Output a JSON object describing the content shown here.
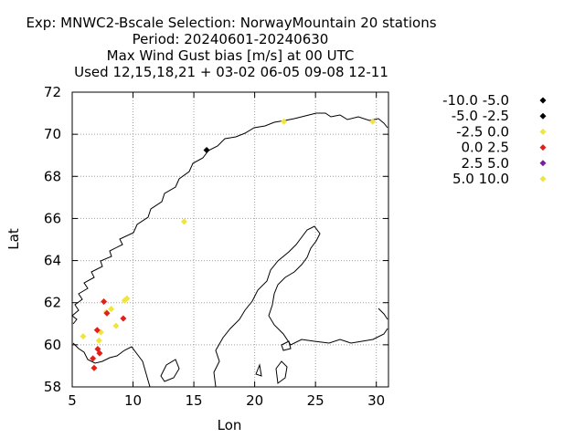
{
  "chart_data": {
    "type": "scatter",
    "title_lines": [
      "Exp: MNWC2-Bscale   Selection: NorwayMountain     20 stations",
      "Period: 20240601-20240630",
      "Max Wind Gust bias [m/s] at  00 UTC",
      "Used 12,15,18,21 + 03-02 06-05 09-08 12-11"
    ],
    "xlabel": "Lon",
    "ylabel": "Lat",
    "xlim": [
      5,
      31
    ],
    "ylim": [
      58,
      72
    ],
    "xticks": [
      "5",
      "10",
      "15",
      "20",
      "25",
      "30"
    ],
    "yticks": [
      "58",
      "60",
      "62",
      "64",
      "66",
      "68",
      "70",
      "72"
    ],
    "grid": true,
    "legend_position": "right",
    "series": [
      {
        "name": "-10.0 -5.0",
        "color": "#000000",
        "points": []
      },
      {
        "name": "-5.0 -2.5",
        "color": "#000000",
        "points": [
          [
            16.05,
            69.25
          ]
        ]
      },
      {
        "name": "-2.5 0.0",
        "color": "#f0e442",
        "points": [
          [
            22.4,
            70.6
          ],
          [
            29.7,
            70.6
          ],
          [
            14.2,
            65.85
          ],
          [
            9.5,
            62.2
          ],
          [
            9.3,
            62.1
          ],
          [
            8.2,
            61.7
          ],
          [
            7.8,
            61.55
          ],
          [
            8.6,
            60.9
          ],
          [
            7.35,
            60.6
          ],
          [
            5.9,
            60.4
          ],
          [
            7.2,
            60.2
          ]
        ]
      },
      {
        "name": "0.0 2.5",
        "color": "#e0201a",
        "points": [
          [
            7.6,
            62.05
          ],
          [
            7.85,
            61.5
          ],
          [
            9.2,
            61.25
          ],
          [
            7.05,
            60.7
          ],
          [
            7.1,
            59.8
          ],
          [
            7.25,
            59.6
          ],
          [
            6.7,
            59.35
          ],
          [
            6.8,
            58.9
          ]
        ]
      },
      {
        "name": "2.5 5.0",
        "color": "#7b1fa2",
        "points": []
      },
      {
        "name": "5.0 10.0",
        "color": "#f0e442",
        "points": []
      }
    ]
  }
}
